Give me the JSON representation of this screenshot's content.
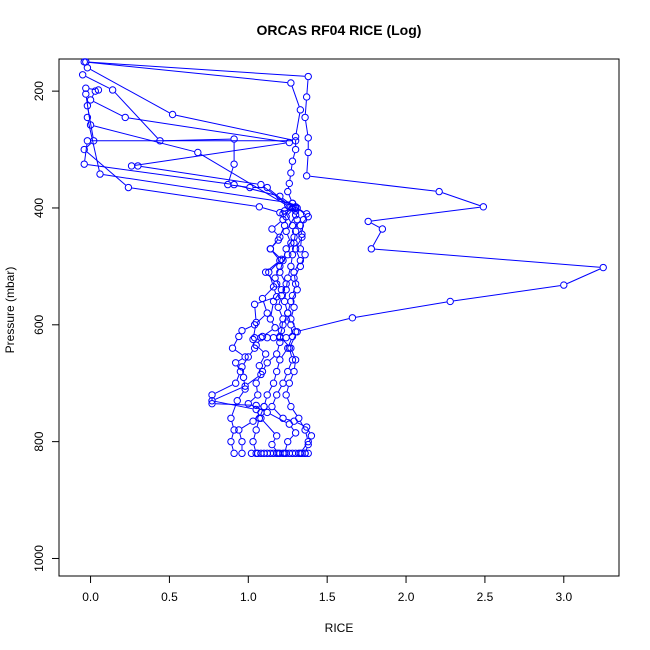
{
  "chart_data": {
    "type": "line",
    "title": "ORCAS RF04 RICE (Log)",
    "xlabel": "RICE",
    "ylabel": "Pressure (mbar)",
    "xlim": [
      -0.2,
      3.35
    ],
    "ylim": [
      1030,
      145
    ],
    "y_reversed": true,
    "x_ticks": [
      0.0,
      0.5,
      1.0,
      1.5,
      2.0,
      2.5,
      3.0
    ],
    "x_tick_labels": [
      "0.0",
      "0.5",
      "1.0",
      "1.5",
      "2.0",
      "2.5",
      "3.0"
    ],
    "y_ticks": [
      200,
      400,
      600,
      800,
      1000
    ],
    "y_tick_labels": [
      "200",
      "400",
      "600",
      "800",
      "1000"
    ],
    "grid": false,
    "legend": "none",
    "series_color": "#0000ff",
    "series": [
      {
        "points": [
          [
            -0.03,
            150
          ],
          [
            1.38,
            175
          ],
          [
            1.37,
            210
          ],
          [
            1.36,
            245
          ],
          [
            1.38,
            280
          ],
          [
            1.38,
            305
          ],
          [
            1.37,
            345
          ],
          [
            2.21,
            372
          ],
          [
            2.49,
            398
          ],
          [
            1.76,
            423
          ],
          [
            1.85,
            436
          ],
          [
            1.78,
            470
          ],
          [
            3.25,
            502
          ],
          [
            3.0,
            532
          ],
          [
            2.28,
            560
          ],
          [
            1.66,
            588
          ],
          [
            1.3,
            612
          ],
          [
            1.24,
            622
          ],
          [
            1.2,
            622
          ],
          [
            1.16,
            622
          ],
          [
            1.12,
            622
          ],
          [
            1.08,
            622
          ],
          [
            1.04,
            622
          ]
        ]
      },
      {
        "points": [
          [
            -0.04,
            150
          ],
          [
            1.27,
            186
          ],
          [
            1.33,
            232
          ],
          [
            1.3,
            278
          ],
          [
            1.3,
            300
          ],
          [
            1.28,
            320
          ],
          [
            1.27,
            340
          ],
          [
            1.26,
            358
          ],
          [
            1.25,
            372
          ],
          [
            1.28,
            392
          ],
          [
            1.3,
            405
          ],
          [
            1.31,
            420
          ],
          [
            1.3,
            440
          ],
          [
            1.29,
            460
          ],
          [
            1.28,
            480
          ],
          [
            1.27,
            500
          ],
          [
            1.25,
            520
          ],
          [
            1.24,
            540
          ],
          [
            1.23,
            560
          ],
          [
            1.25,
            580
          ],
          [
            1.27,
            600
          ],
          [
            1.28,
            620
          ],
          [
            1.25,
            640
          ],
          [
            1.2,
            660
          ],
          [
            1.18,
            680
          ],
          [
            1.16,
            700
          ],
          [
            1.12,
            720
          ],
          [
            1.1,
            740
          ],
          [
            1.07,
            760
          ],
          [
            1.05,
            780
          ],
          [
            1.03,
            800
          ],
          [
            1.05,
            820
          ]
        ]
      },
      {
        "points": [
          [
            -0.02,
            160
          ],
          [
            0.52,
            240
          ],
          [
            1.3,
            285
          ],
          [
            -0.02,
            285
          ],
          [
            -0.04,
            325
          ],
          [
            0.91,
            360
          ],
          [
            1.2,
            380
          ],
          [
            1.3,
            400
          ],
          [
            1.22,
            410
          ],
          [
            1.22,
            420
          ],
          [
            1.15,
            436
          ],
          [
            1.2,
            450
          ],
          [
            1.14,
            470
          ],
          [
            1.2,
            490
          ],
          [
            1.11,
            510
          ],
          [
            1.18,
            530
          ],
          [
            1.09,
            555
          ],
          [
            1.12,
            580
          ],
          [
            1.04,
            600
          ],
          [
            0.96,
            610
          ],
          [
            0.94,
            620
          ],
          [
            0.9,
            640
          ],
          [
            0.98,
            655
          ],
          [
            0.92,
            665
          ],
          [
            0.95,
            680
          ],
          [
            0.92,
            700
          ],
          [
            0.77,
            720
          ],
          [
            0.77,
            735
          ],
          [
            1.05,
            738
          ],
          [
            1.1,
            740
          ],
          [
            1.08,
            750
          ],
          [
            1.03,
            765
          ],
          [
            0.94,
            780
          ],
          [
            0.96,
            800
          ],
          [
            0.96,
            820
          ]
        ]
      },
      {
        "points": [
          [
            -0.05,
            172
          ],
          [
            0.14,
            198
          ],
          [
            0.44,
            285
          ],
          [
            0.91,
            282
          ],
          [
            0.91,
            325
          ],
          [
            0.87,
            360
          ],
          [
            1.01,
            365
          ],
          [
            1.12,
            365
          ],
          [
            1.27,
            398
          ],
          [
            1.3,
            398
          ],
          [
            1.38,
            415
          ],
          [
            1.33,
            430
          ],
          [
            1.34,
            450
          ],
          [
            1.3,
            470
          ],
          [
            1.33,
            490
          ],
          [
            1.29,
            510
          ],
          [
            1.3,
            530
          ],
          [
            1.28,
            550
          ],
          [
            1.29,
            570
          ],
          [
            1.27,
            590
          ],
          [
            1.31,
            612
          ],
          [
            1.26,
            640
          ],
          [
            1.28,
            660
          ],
          [
            1.25,
            680
          ],
          [
            1.22,
            700
          ],
          [
            1.18,
            720
          ],
          [
            1.15,
            740
          ],
          [
            1.22,
            760
          ],
          [
            1.29,
            765
          ],
          [
            1.37,
            775
          ],
          [
            1.4,
            790
          ],
          [
            1.38,
            805
          ],
          [
            1.36,
            820
          ]
        ]
      },
      {
        "points": [
          [
            -0.03,
            195
          ],
          [
            0.05,
            198
          ],
          [
            0.03,
            200
          ],
          [
            0.0,
            215
          ],
          [
            0.22,
            245
          ],
          [
            1.26,
            288
          ],
          [
            0.26,
            328
          ],
          [
            0.3,
            328
          ],
          [
            1.08,
            360
          ],
          [
            1.25,
            395
          ],
          [
            1.23,
            405
          ],
          [
            1.28,
            430
          ],
          [
            1.29,
            450
          ],
          [
            1.24,
            470
          ],
          [
            1.22,
            490
          ],
          [
            1.2,
            510
          ],
          [
            1.24,
            530
          ],
          [
            1.21,
            550
          ],
          [
            1.19,
            570
          ],
          [
            1.22,
            590
          ],
          [
            1.21,
            610
          ],
          [
            1.2,
            630
          ],
          [
            1.18,
            650
          ],
          [
            1.12,
            665
          ],
          [
            1.09,
            680
          ],
          [
            1.05,
            700
          ],
          [
            1.06,
            720
          ],
          [
            1.0,
            735
          ],
          [
            1.12,
            750
          ],
          [
            1.26,
            770
          ],
          [
            1.3,
            785
          ],
          [
            1.25,
            800
          ],
          [
            1.23,
            820
          ]
        ]
      },
      {
        "points": [
          [
            -0.03,
            205
          ],
          [
            0.0,
            258
          ],
          [
            0.68,
            305
          ],
          [
            1.26,
            398
          ],
          [
            1.28,
            400
          ],
          [
            1.3,
            412
          ],
          [
            1.24,
            440
          ],
          [
            1.27,
            460
          ],
          [
            1.25,
            480
          ],
          [
            1.2,
            500
          ],
          [
            1.17,
            520
          ],
          [
            1.21,
            540
          ],
          [
            1.16,
            560
          ],
          [
            1.14,
            590
          ],
          [
            1.17,
            605
          ],
          [
            1.09,
            620
          ],
          [
            1.05,
            635
          ],
          [
            1.11,
            650
          ],
          [
            1.07,
            670
          ],
          [
            1.08,
            685
          ],
          [
            0.98,
            705
          ],
          [
            0.77,
            730
          ],
          [
            1.05,
            745
          ],
          [
            1.08,
            760
          ],
          [
            1.18,
            790
          ],
          [
            1.15,
            805
          ],
          [
            1.19,
            820
          ]
        ]
      },
      {
        "points": [
          [
            -0.02,
            225
          ],
          [
            0.02,
            285
          ],
          [
            -0.04,
            300
          ],
          [
            0.24,
            365
          ],
          [
            1.07,
            398
          ],
          [
            1.2,
            408
          ],
          [
            1.29,
            400
          ],
          [
            1.24,
            415
          ],
          [
            1.23,
            430
          ],
          [
            1.19,
            455
          ],
          [
            1.14,
            470
          ],
          [
            1.21,
            488
          ],
          [
            1.13,
            510
          ],
          [
            1.16,
            535
          ],
          [
            1.18,
            552
          ],
          [
            1.04,
            565
          ],
          [
            1.05,
            596
          ],
          [
            1.03,
            625
          ],
          [
            1.04,
            640
          ],
          [
            1.0,
            655
          ],
          [
            0.96,
            672
          ],
          [
            0.97,
            690
          ],
          [
            0.98,
            710
          ],
          [
            0.93,
            730
          ],
          [
            0.89,
            760
          ],
          [
            0.91,
            780
          ],
          [
            0.89,
            800
          ],
          [
            0.91,
            820
          ]
        ]
      },
      {
        "points": [
          [
            -0.02,
            245
          ],
          [
            0.06,
            342
          ],
          [
            1.28,
            392
          ],
          [
            1.31,
            400
          ],
          [
            1.37,
            410
          ],
          [
            1.35,
            420
          ],
          [
            1.34,
            445
          ],
          [
            1.33,
            470
          ],
          [
            1.36,
            480
          ],
          [
            1.33,
            500
          ],
          [
            1.29,
            520
          ],
          [
            1.31,
            540
          ],
          [
            1.27,
            560
          ],
          [
            1.25,
            580
          ],
          [
            1.22,
            600
          ],
          [
            1.2,
            620
          ],
          [
            1.27,
            640
          ],
          [
            1.3,
            660
          ],
          [
            1.29,
            680
          ],
          [
            1.26,
            700
          ],
          [
            1.24,
            720
          ],
          [
            1.27,
            740
          ],
          [
            1.32,
            760
          ],
          [
            1.36,
            780
          ],
          [
            1.38,
            800
          ],
          [
            1.33,
            820
          ]
        ]
      },
      {
        "points": [
          [
            1.38,
            820
          ],
          [
            1.36,
            820
          ],
          [
            1.34,
            820
          ],
          [
            1.32,
            820
          ],
          [
            1.3,
            820
          ],
          [
            1.28,
            820
          ],
          [
            1.26,
            820
          ],
          [
            1.24,
            820
          ],
          [
            1.22,
            820
          ],
          [
            1.2,
            820
          ],
          [
            1.18,
            820
          ],
          [
            1.16,
            820
          ],
          [
            1.14,
            820
          ],
          [
            1.12,
            820
          ],
          [
            1.1,
            820
          ],
          [
            1.08,
            820
          ],
          [
            1.06,
            820
          ],
          [
            1.02,
            820
          ]
        ]
      }
    ]
  }
}
